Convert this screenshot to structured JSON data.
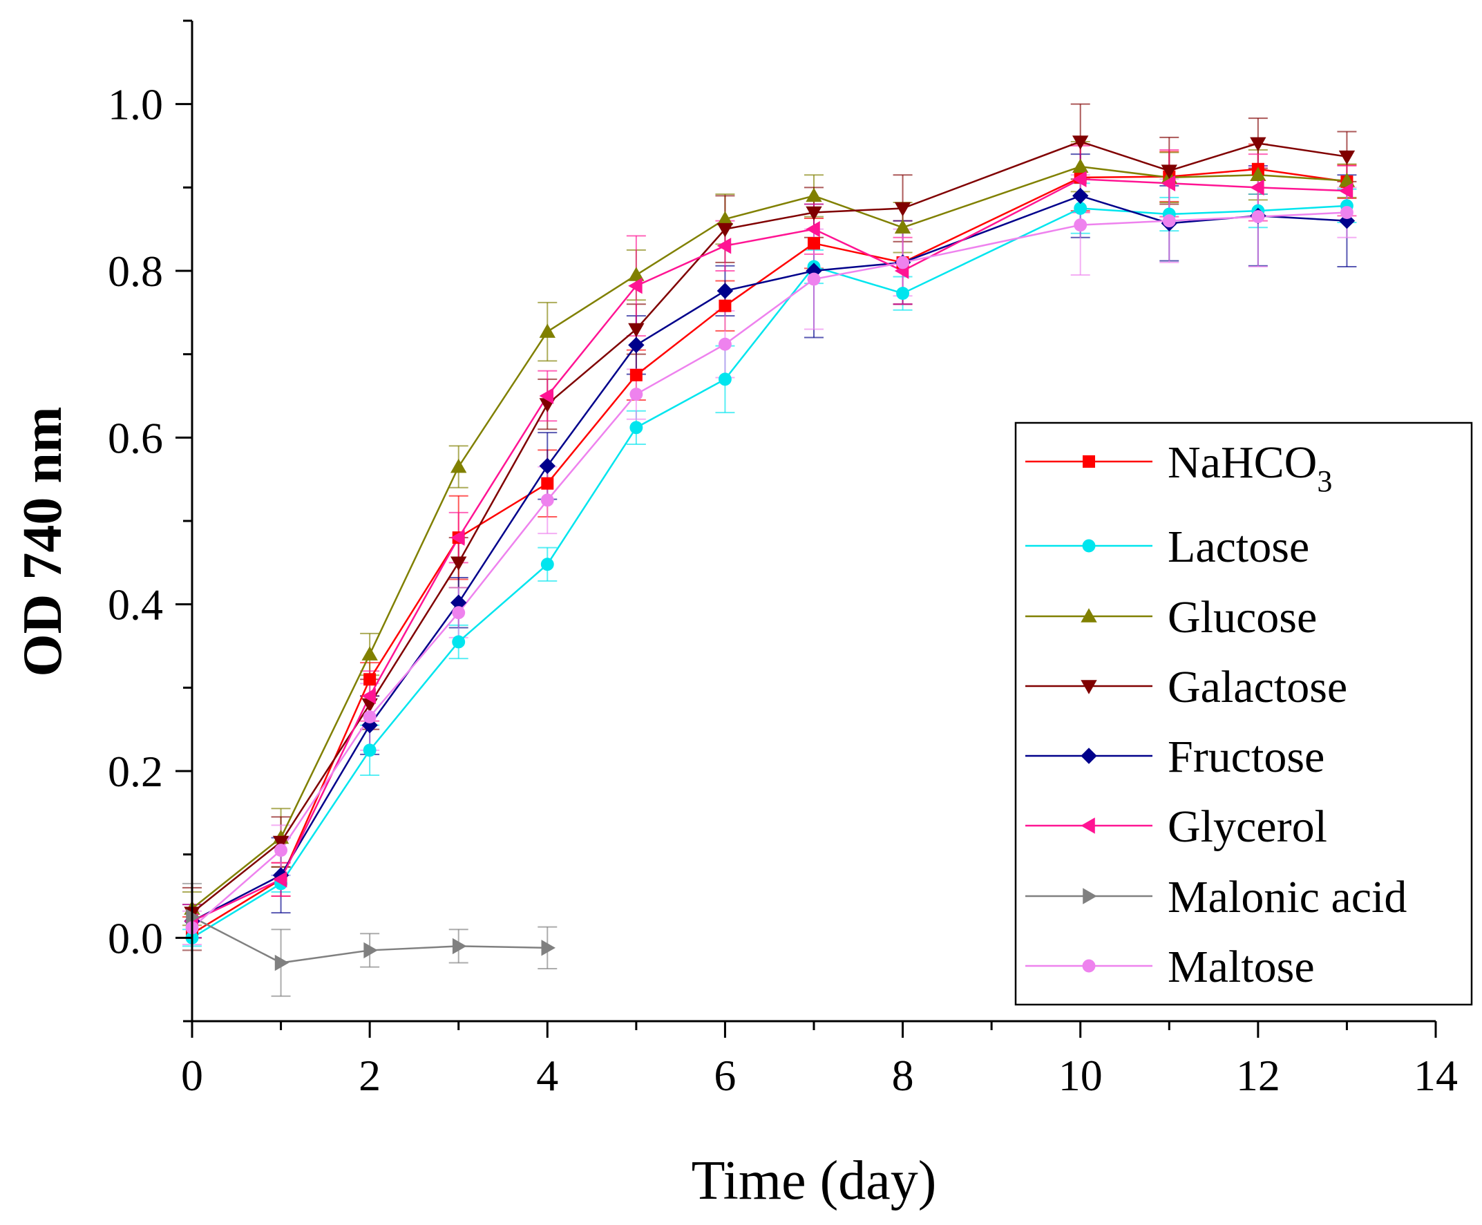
{
  "chart_data": {
    "type": "line",
    "title": "",
    "xlabel": "Time (day)",
    "ylabel": "OD 740 nm",
    "xlim": [
      0,
      14
    ],
    "ylim": [
      -0.1,
      1.1
    ],
    "xticks": [
      0,
      2,
      4,
      6,
      8,
      10,
      12,
      14
    ],
    "yticks": [
      0.0,
      0.2,
      0.4,
      0.6,
      0.8,
      1.0
    ],
    "xtick_labels": [
      "0",
      "2",
      "4",
      "6",
      "8",
      "10",
      "12",
      "14"
    ],
    "ytick_labels": [
      "0.0",
      "0.2",
      "0.4",
      "0.6",
      "0.8",
      "1.0"
    ],
    "grid": false,
    "legend_position": "right",
    "series": [
      {
        "name": "NaHCO",
        "name_sub": "3",
        "color": "#ff0000",
        "marker": "square",
        "x": [
          0,
          1,
          2,
          3,
          4,
          5,
          6,
          7,
          8,
          10,
          11,
          12,
          13
        ],
        "y": [
          0.005,
          0.07,
          0.31,
          0.48,
          0.545,
          0.675,
          0.758,
          0.833,
          0.81,
          0.912,
          0.913,
          0.922,
          0.907
        ],
        "err": [
          0.02,
          0.02,
          0.02,
          0.05,
          0.04,
          0.03,
          0.03,
          0.03,
          0.05,
          0.04,
          0.03,
          0.03,
          0.02
        ]
      },
      {
        "name": "Lactose",
        "color": "#00e5ee",
        "marker": "circle",
        "x": [
          0,
          1,
          2,
          3,
          4,
          5,
          6,
          7,
          8,
          10,
          11,
          12,
          13
        ],
        "y": [
          0.0,
          0.065,
          0.225,
          0.355,
          0.448,
          0.612,
          0.67,
          0.805,
          0.773,
          0.875,
          0.868,
          0.872,
          0.878
        ],
        "err": [
          0.01,
          0.01,
          0.03,
          0.02,
          0.02,
          0.02,
          0.04,
          0.02,
          0.02,
          0.03,
          0.02,
          0.02,
          0.02
        ]
      },
      {
        "name": "Glucose",
        "color": "#808000",
        "marker": "triangle-up",
        "x": [
          0,
          1,
          2,
          3,
          4,
          5,
          6,
          7,
          8,
          10,
          11,
          12,
          13
        ],
        "y": [
          0.035,
          0.12,
          0.34,
          0.565,
          0.727,
          0.795,
          0.862,
          0.89,
          0.852,
          0.925,
          0.912,
          0.915,
          0.908
        ],
        "err": [
          0.02,
          0.035,
          0.025,
          0.025,
          0.035,
          0.03,
          0.03,
          0.025,
          0.03,
          0.03,
          0.03,
          0.03,
          0.02
        ]
      },
      {
        "name": "Galactose",
        "color": "#800000",
        "marker": "triangle-down",
        "x": [
          0,
          1,
          2,
          3,
          4,
          5,
          6,
          7,
          8,
          10,
          11,
          12,
          13
        ],
        "y": [
          0.03,
          0.115,
          0.28,
          0.45,
          0.64,
          0.73,
          0.85,
          0.87,
          0.875,
          0.955,
          0.92,
          0.953,
          0.937
        ],
        "err": [
          0.03,
          0.03,
          0.03,
          0.03,
          0.03,
          0.03,
          0.04,
          0.03,
          0.04,
          0.045,
          0.04,
          0.03,
          0.03
        ]
      },
      {
        "name": "Fructose",
        "color": "#00008b",
        "marker": "diamond",
        "x": [
          0,
          1,
          2,
          3,
          4,
          5,
          6,
          7,
          8,
          10,
          11,
          12,
          13
        ],
        "y": [
          0.02,
          0.075,
          0.255,
          0.402,
          0.566,
          0.711,
          0.776,
          0.8,
          0.81,
          0.89,
          0.857,
          0.866,
          0.86
        ],
        "err": [
          0.02,
          0.045,
          0.035,
          0.03,
          0.04,
          0.035,
          0.03,
          0.08,
          0.05,
          0.05,
          0.045,
          0.06,
          0.055
        ]
      },
      {
        "name": "Glycerol",
        "color": "#ff1493",
        "marker": "triangle-left",
        "x": [
          0,
          1,
          2,
          3,
          4,
          5,
          6,
          7,
          8,
          10,
          11,
          12,
          13
        ],
        "y": [
          0.02,
          0.07,
          0.29,
          0.48,
          0.65,
          0.782,
          0.83,
          0.85,
          0.8,
          0.91,
          0.905,
          0.9,
          0.896
        ],
        "err": [
          0.02,
          0.02,
          0.03,
          0.03,
          0.03,
          0.06,
          0.03,
          0.03,
          0.04,
          0.04,
          0.04,
          0.04,
          0.03
        ]
      },
      {
        "name": "Malonic acid",
        "color": "#808080",
        "marker": "triangle-right",
        "x": [
          0,
          1,
          2,
          3,
          4
        ],
        "y": [
          0.025,
          -0.03,
          -0.015,
          -0.01,
          -0.012
        ],
        "err": [
          0.04,
          0.04,
          0.02,
          0.02,
          0.025
        ]
      },
      {
        "name": "Maltose",
        "color": "#ee82ee",
        "marker": "circle",
        "x": [
          0,
          1,
          2,
          3,
          4,
          5,
          6,
          7,
          8,
          10,
          11,
          12,
          13
        ],
        "y": [
          0.012,
          0.105,
          0.265,
          0.39,
          0.525,
          0.652,
          0.712,
          0.79,
          0.81,
          0.855,
          0.86,
          0.865,
          0.87
        ],
        "err": [
          0.02,
          0.03,
          0.04,
          0.03,
          0.04,
          0.03,
          0.04,
          0.06,
          0.04,
          0.06,
          0.05,
          0.06,
          0.03
        ]
      }
    ]
  }
}
